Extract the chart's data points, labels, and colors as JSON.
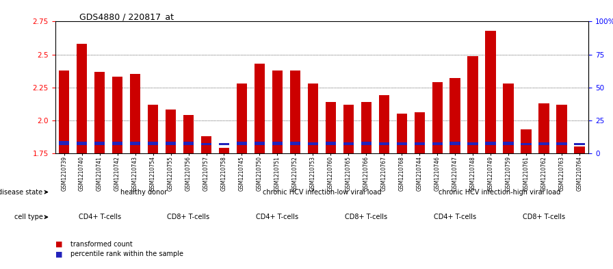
{
  "title": "GDS4880 / 220817_at",
  "samples": [
    "GSM1210739",
    "GSM1210740",
    "GSM1210741",
    "GSM1210742",
    "GSM1210743",
    "GSM1210754",
    "GSM1210755",
    "GSM1210756",
    "GSM1210757",
    "GSM1210758",
    "GSM1210745",
    "GSM1210750",
    "GSM1210751",
    "GSM1210752",
    "GSM1210753",
    "GSM1210760",
    "GSM1210765",
    "GSM1210766",
    "GSM1210767",
    "GSM1210768",
    "GSM1210744",
    "GSM1210746",
    "GSM1210747",
    "GSM1210748",
    "GSM1210749",
    "GSM1210759",
    "GSM1210761",
    "GSM1210762",
    "GSM1210763",
    "GSM1210764"
  ],
  "red_values": [
    2.38,
    2.58,
    2.37,
    2.33,
    2.35,
    2.12,
    2.08,
    2.04,
    1.88,
    1.79,
    2.28,
    2.43,
    2.38,
    2.38,
    2.28,
    2.14,
    2.12,
    2.14,
    2.19,
    2.05,
    2.06,
    2.29,
    2.32,
    2.49,
    2.68,
    2.28,
    1.93,
    2.13,
    2.12,
    1.8
  ],
  "blue_values": [
    0.09,
    0.07,
    0.07,
    0.07,
    0.07,
    0.07,
    0.07,
    0.07,
    0.04,
    0.04,
    0.07,
    0.07,
    0.07,
    0.07,
    0.06,
    0.07,
    0.06,
    0.07,
    0.06,
    0.06,
    0.06,
    0.06,
    0.07,
    0.06,
    0.07,
    0.07,
    0.04,
    0.06,
    0.06,
    0.04
  ],
  "ymin": 1.75,
  "ymax": 2.75,
  "yticks_left": [
    1.75,
    2.0,
    2.25,
    2.5,
    2.75
  ],
  "yticks_right": [
    0,
    25,
    50,
    75,
    100
  ],
  "bar_color": "#CC0000",
  "blue_color": "#2222BB",
  "plot_bg": "#FFFFFF",
  "disease_groups": [
    {
      "label": "healthy donor",
      "start": 0,
      "end": 10,
      "color": "#AADDAA"
    },
    {
      "label": "chronic HCV infection-low viral load",
      "start": 10,
      "end": 20,
      "color": "#88CC88"
    },
    {
      "label": "chronic HCV infection-high viral load",
      "start": 20,
      "end": 30,
      "color": "#66BB66"
    }
  ],
  "cell_type_groups": [
    {
      "label": "CD4+ T-cells",
      "start": 0,
      "end": 5,
      "color": "#EE99EE"
    },
    {
      "label": "CD8+ T-cells",
      "start": 5,
      "end": 10,
      "color": "#CC55CC"
    },
    {
      "label": "CD4+ T-cells",
      "start": 10,
      "end": 15,
      "color": "#EE99EE"
    },
    {
      "label": "CD8+ T-cells",
      "start": 15,
      "end": 20,
      "color": "#CC55CC"
    },
    {
      "label": "CD4+ T-cells",
      "start": 20,
      "end": 25,
      "color": "#EE99EE"
    },
    {
      "label": "CD8+ T-cells",
      "start": 25,
      "end": 30,
      "color": "#CC55CC"
    }
  ],
  "legend_items": [
    {
      "label": "transformed count",
      "color": "#CC0000"
    },
    {
      "label": "percentile rank within the sample",
      "color": "#2222BB"
    }
  ]
}
